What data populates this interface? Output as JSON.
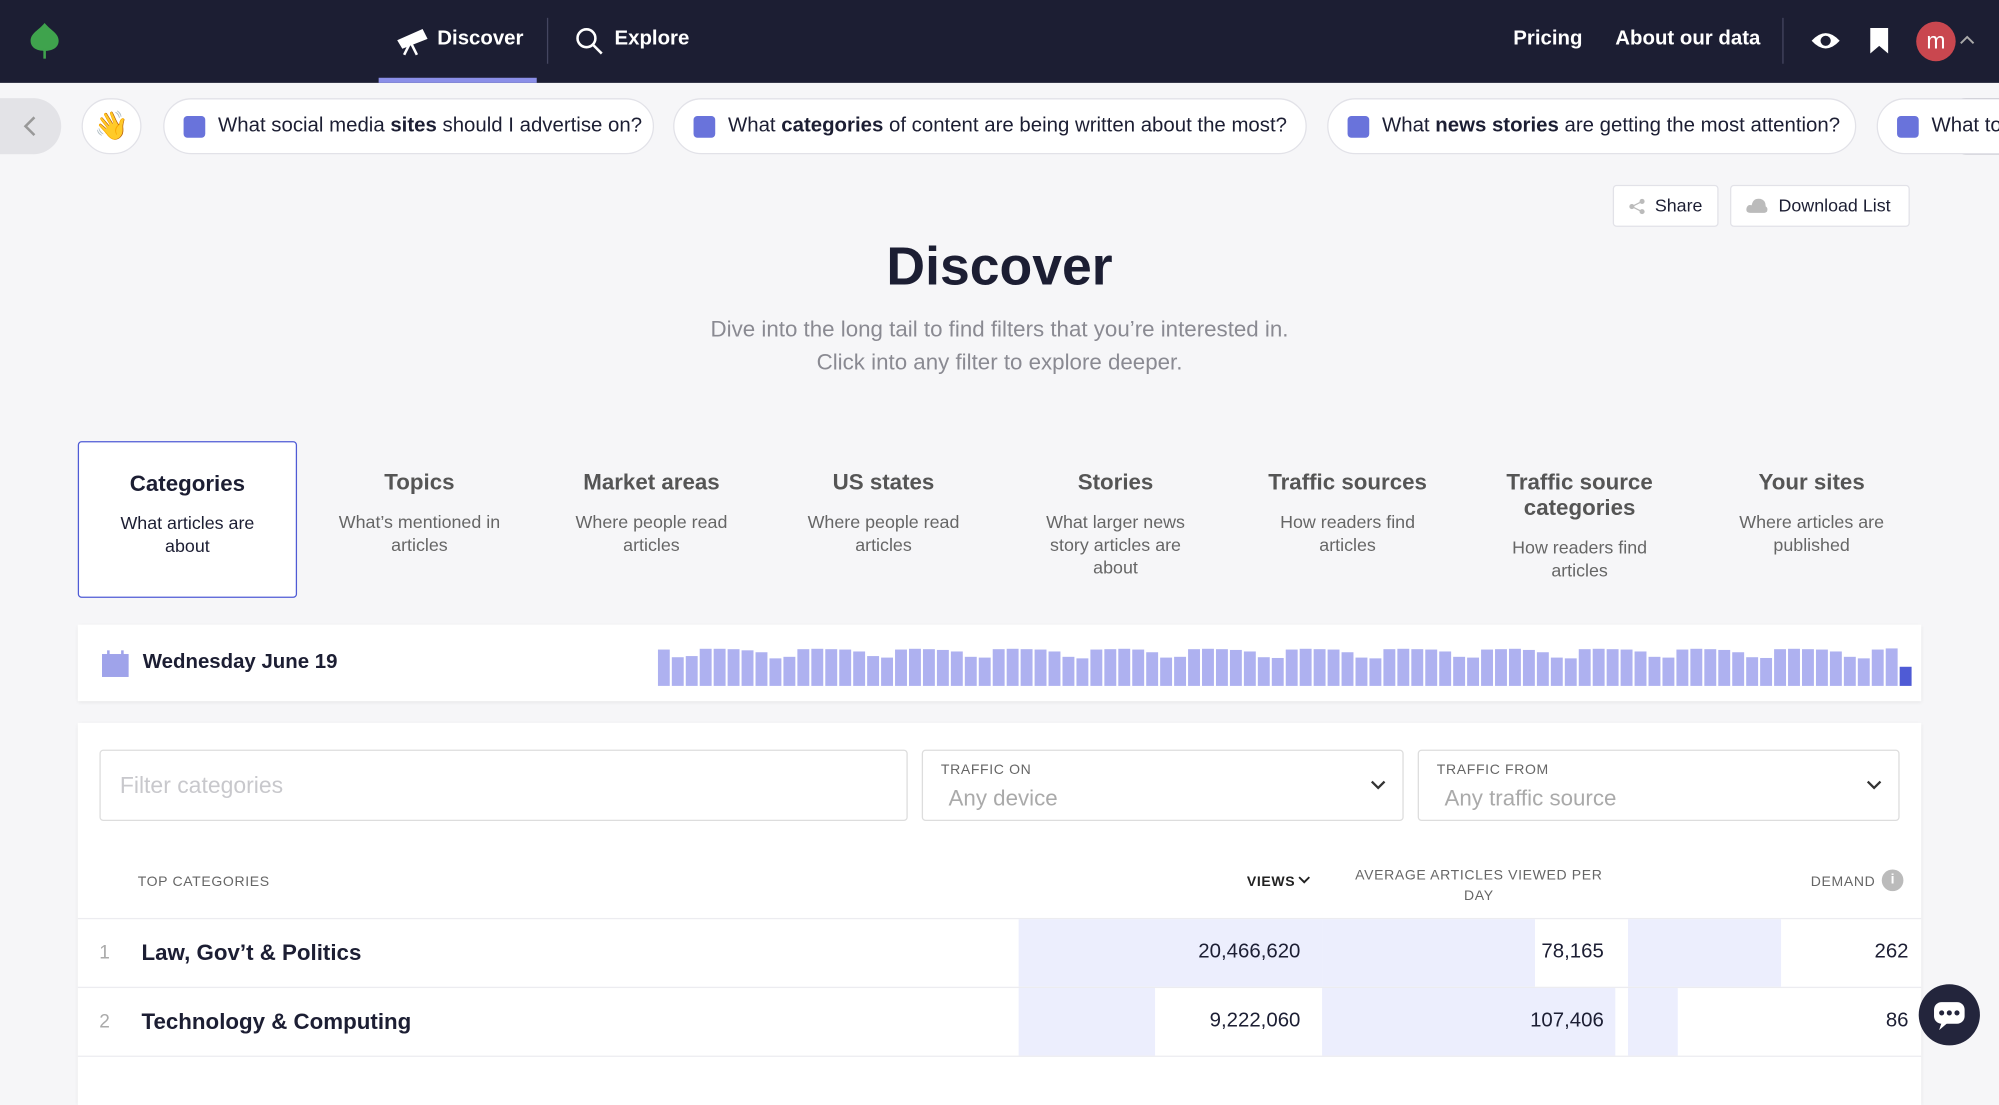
{
  "nav": {
    "items": [
      "Discover",
      "Explore"
    ],
    "links": [
      "Pricing",
      "About our data"
    ],
    "avatar": "m"
  },
  "questions": [
    {
      "parts": [
        "What social media ",
        "sites",
        " should I advertise on?"
      ]
    },
    {
      "parts": [
        "What ",
        "categories",
        " of content are being written about the most?"
      ]
    },
    {
      "parts": [
        "What ",
        "news stories",
        " are getting the most attention?"
      ]
    },
    {
      "parts": [
        "What to"
      ]
    }
  ],
  "actions": [
    "Share",
    "Download List"
  ],
  "header": {
    "title": "Discover",
    "subtitle": [
      "Dive into the long tail to find filters that you’re interested in.",
      "Click into any filter to explore deeper."
    ]
  },
  "tabs": [
    {
      "title": "Categories",
      "desc": "What articles are about"
    },
    {
      "title": "Topics",
      "desc": "What’s mentioned in articles"
    },
    {
      "title": "Market areas",
      "desc": "Where people read articles"
    },
    {
      "title": "US states",
      "desc": "Where people read articles"
    },
    {
      "title": "Stories",
      "desc": "What larger news story articles are about"
    },
    {
      "title": "Traffic sources",
      "desc": "How readers find articles"
    },
    {
      "title": "Traffic source categories",
      "desc": "How readers find articles"
    },
    {
      "title": "Your sites",
      "desc": "Where articles are published"
    }
  ],
  "date": "Wednesday June 19",
  "activity": [
    95,
    75,
    78,
    97,
    97,
    96,
    93,
    88,
    72,
    76,
    96,
    97,
    96,
    95,
    90,
    78,
    74,
    95,
    97,
    96,
    94,
    90,
    76,
    74,
    96,
    97,
    96,
    95,
    90,
    76,
    72,
    95,
    96,
    97,
    95,
    88,
    74,
    76,
    96,
    97,
    96,
    94,
    90,
    75,
    73,
    95,
    97,
    96,
    95,
    88,
    74,
    72,
    96,
    97,
    96,
    95,
    90,
    76,
    74,
    95,
    96,
    97,
    94,
    88,
    74,
    72,
    96,
    97,
    96,
    95,
    90,
    76,
    74,
    95,
    97,
    96,
    94,
    88,
    75,
    73,
    96,
    97,
    96,
    95,
    90,
    76,
    72,
    95,
    98,
    50
  ],
  "filters": {
    "placeholder": "Filter categories",
    "device": {
      "label": "TRAFFIC ON",
      "value": "Any device"
    },
    "source": {
      "label": "TRAFFIC FROM",
      "value": "Any traffic source"
    }
  },
  "table": {
    "columns": [
      "TOP CATEGORIES",
      "VIEWS",
      "AVERAGE ARTICLES VIEWED PER DAY",
      "DEMAND"
    ],
    "rows": [
      {
        "rank": 1,
        "name": "Law, Gov’t & Politics",
        "views": {
          "value": 20466620,
          "label": "20,466,620"
        },
        "avg": {
          "value": 78165,
          "label": "78,165"
        },
        "demand": 262
      },
      {
        "rank": 2,
        "name": "Technology & Computing",
        "views": {
          "value": 9222060,
          "label": "9,222,060"
        },
        "avg": {
          "value": 107406,
          "label": "107,406"
        },
        "demand": 86
      }
    ]
  }
}
